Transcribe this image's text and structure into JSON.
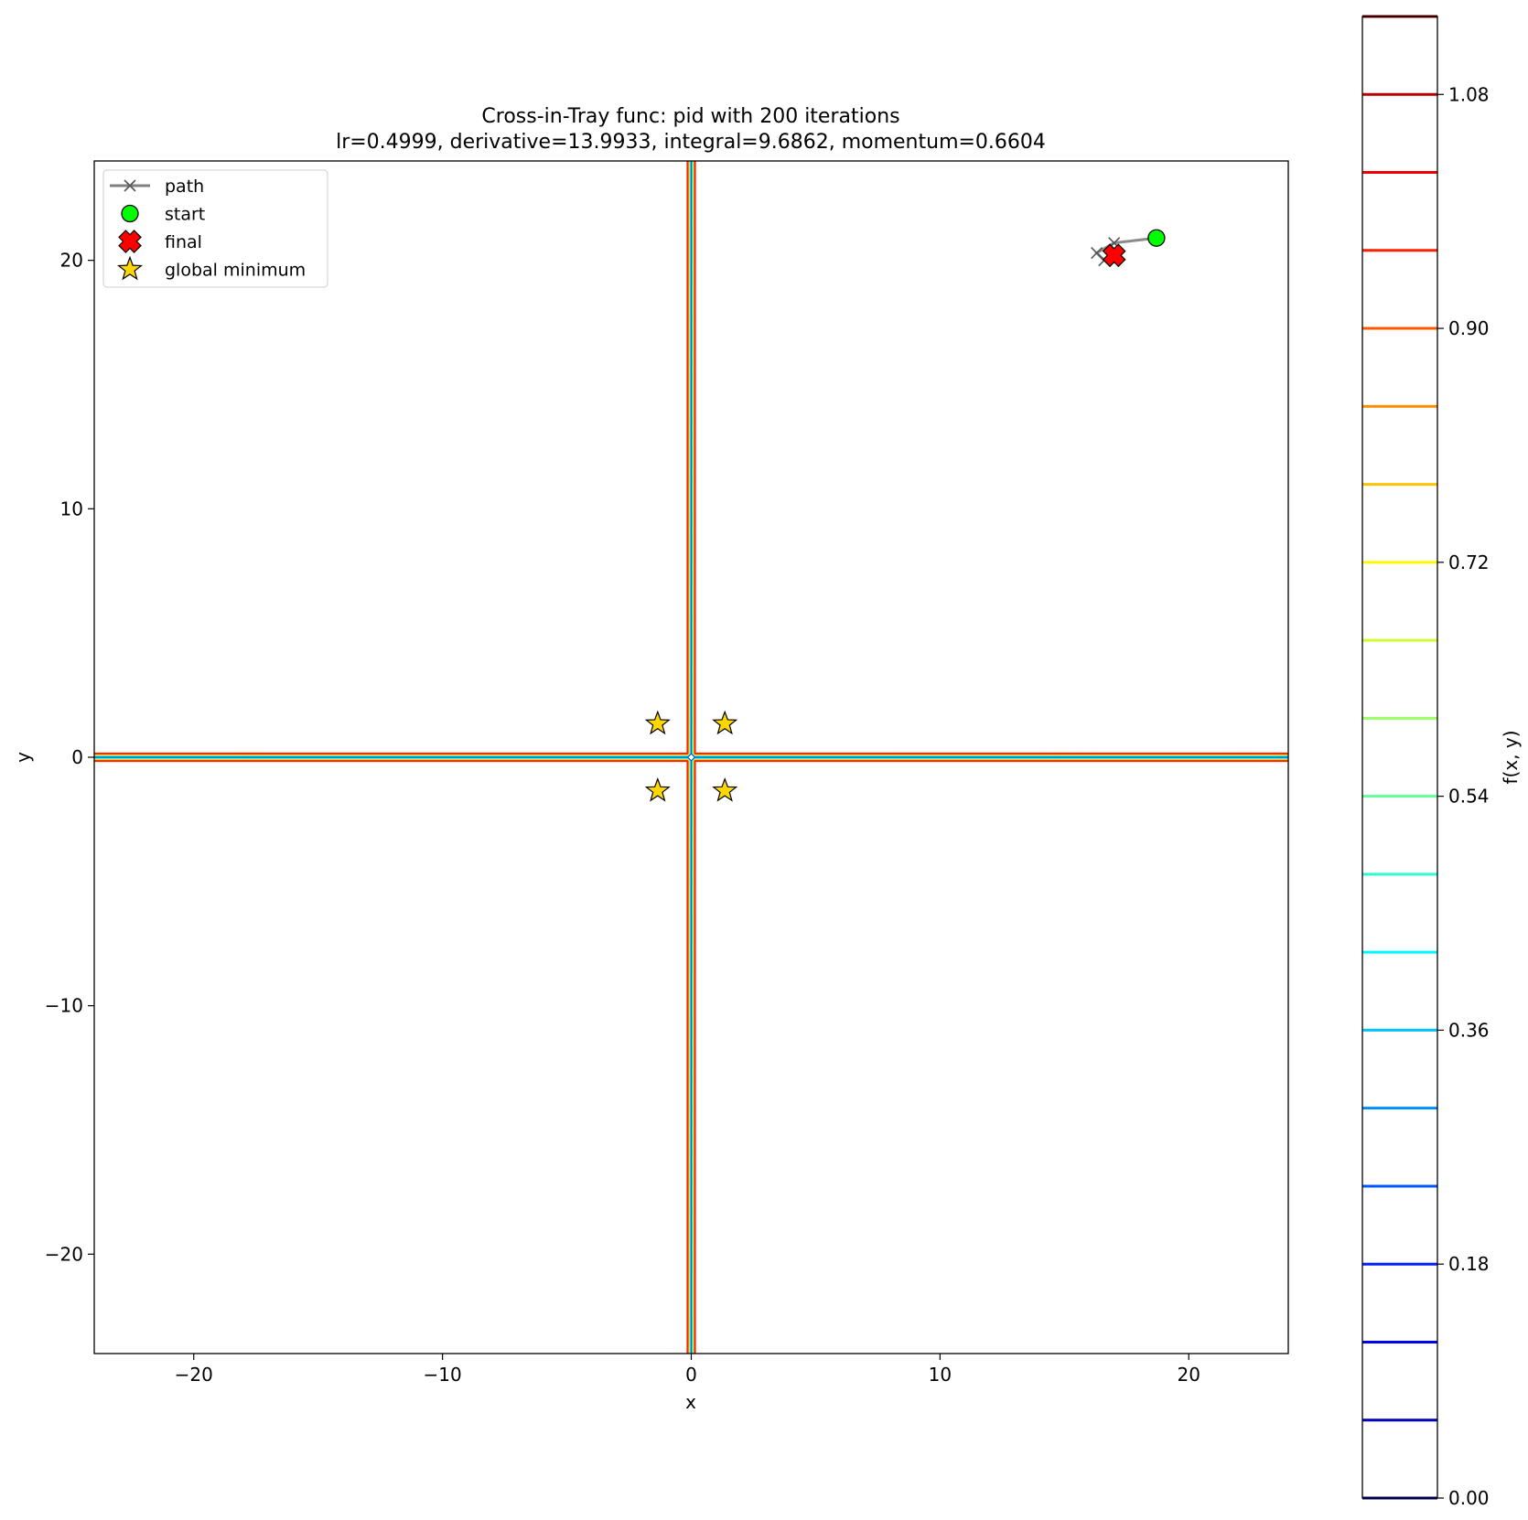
{
  "chart_data": {
    "type": "contour",
    "title": "Cross-in-Tray func: pid with 200 iterations",
    "subtitle": "lr=0.4999, derivative=13.9933, integral=9.6862, momentum=0.6604",
    "xlabel": "x",
    "ylabel": "y",
    "xlim": [
      -24,
      24
    ],
    "ylim": [
      -24,
      24
    ],
    "x_ticks": [
      -20,
      -10,
      0,
      10,
      20
    ],
    "y_ticks": [
      -20,
      -10,
      0,
      10,
      20
    ],
    "x_tick_labels": [
      "−20",
      "−10",
      "0",
      "10",
      "20"
    ],
    "y_tick_labels": [
      "−20",
      "−10",
      "0",
      "10",
      "20"
    ],
    "grid": false,
    "legend_placement": "upper-left",
    "legend": [
      {
        "label": "path",
        "marker": "x-line",
        "color": "#808080"
      },
      {
        "label": "start",
        "marker": "circle",
        "color": "#00ff00"
      },
      {
        "label": "final",
        "marker": "cross",
        "color": "#ff0000"
      },
      {
        "label": "global minimum",
        "marker": "star",
        "color": "#ffd700"
      }
    ],
    "path": [
      [
        18.7,
        20.9
      ],
      [
        17.0,
        20.7
      ],
      [
        16.3,
        20.3
      ],
      [
        16.6,
        20.0
      ],
      [
        17.0,
        20.2
      ]
    ],
    "start": [
      18.7,
      20.9
    ],
    "final": [
      17.0,
      20.2
    ],
    "global_minima": [
      [
        1.35,
        1.35
      ],
      [
        -1.35,
        1.35
      ],
      [
        1.35,
        -1.35
      ],
      [
        -1.35,
        -1.35
      ]
    ],
    "colorbar": {
      "label": "f(x, y)",
      "min": 0.0,
      "max": 1.14,
      "tick_values": [
        0.0,
        0.18,
        0.36,
        0.54,
        0.72,
        0.9,
        1.08
      ],
      "tick_labels": [
        "0.00",
        "0.18",
        "0.36",
        "0.54",
        "0.72",
        "0.90",
        "1.08"
      ],
      "levels": [
        0.0,
        0.06,
        0.12,
        0.18,
        0.24,
        0.3,
        0.36,
        0.42,
        0.48,
        0.54,
        0.6,
        0.66,
        0.72,
        0.78,
        0.84,
        0.9,
        0.96,
        1.02,
        1.08,
        1.14
      ],
      "colormap": "jet"
    }
  }
}
